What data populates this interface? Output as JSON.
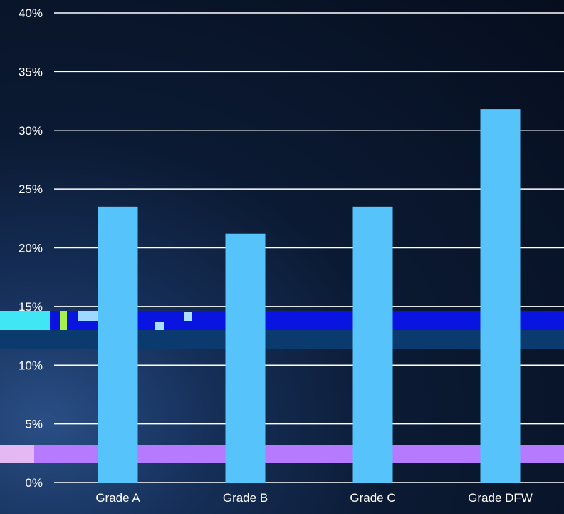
{
  "chart_data": {
    "type": "bar",
    "title": "",
    "xlabel": "",
    "ylabel": "",
    "categories": [
      "Grade A",
      "Grade B",
      "Grade C",
      "Grade DFW"
    ],
    "values": [
      23.5,
      21.2,
      23.5,
      31.8
    ],
    "ylim": [
      0,
      40
    ],
    "yticks": [
      "0%",
      "5%",
      "10%",
      "15%",
      "20%",
      "25%",
      "30%",
      "35%",
      "40%"
    ],
    "grid": true,
    "legend": "none",
    "colors": {
      "bar": "#56c4fb",
      "grid": "#ffffff",
      "text": "#ffffff"
    }
  }
}
